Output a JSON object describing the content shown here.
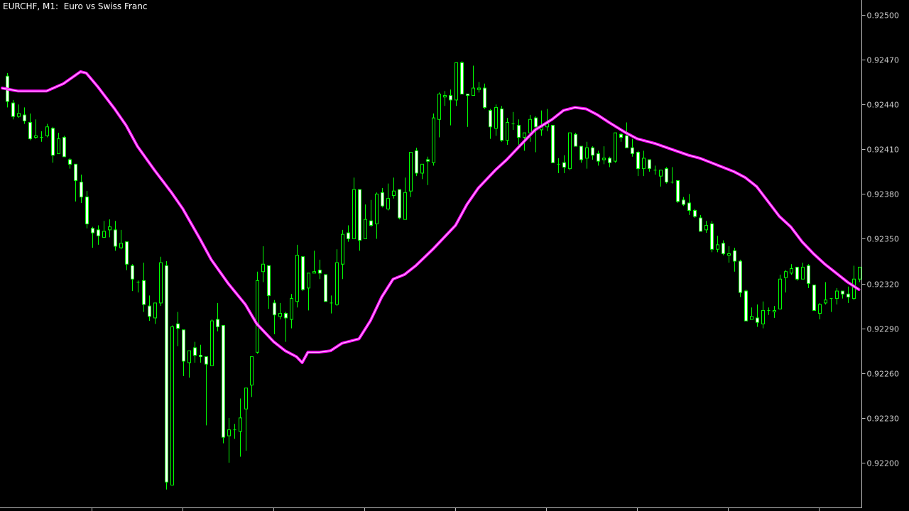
{
  "chart_title": "EURCHF, M1:  Euro vs Swiss Franc",
  "colors": {
    "background": "#000000",
    "candle_wick": "#00ff00",
    "bull_body_outline": "#00ff00",
    "bull_body_fill": "#000000",
    "bear_body_fill": "#ffffff",
    "moving_average": "#ff00ff",
    "axis": "#c0c0c0",
    "axis_text": "#d0d0d0"
  },
  "chart_data": {
    "type": "candlestick",
    "symbol": "EURCHF",
    "timeframe": "M1",
    "title": "EURCHF, M1:  Euro vs Swiss Franc",
    "xlabel": "",
    "ylabel": "",
    "ylim": [
      0.9217,
      0.9251
    ],
    "grid": false,
    "y_ticks": [
      "0.92500",
      "0.92470",
      "0.92440",
      "0.92410",
      "0.92380",
      "0.92350",
      "0.92320",
      "0.92290",
      "0.92260",
      "0.92230",
      "0.92200"
    ],
    "candle_fields": [
      "open",
      "high",
      "low",
      "close"
    ],
    "candles": [
      [
        0.92459,
        0.92461,
        0.92438,
        0.92442
      ],
      [
        0.92441,
        0.92443,
        0.9243,
        0.92432
      ],
      [
        0.92432,
        0.9244,
        0.92431,
        0.92434
      ],
      [
        0.92433,
        0.92438,
        0.92427,
        0.92429
      ],
      [
        0.92428,
        0.92434,
        0.92416,
        0.92417
      ],
      [
        0.92418,
        0.9243,
        0.92417,
        0.92419
      ],
      [
        0.92418,
        0.92422,
        0.92415,
        0.92418
      ],
      [
        0.92419,
        0.92427,
        0.92418,
        0.92425
      ],
      [
        0.92424,
        0.92425,
        0.92401,
        0.92406
      ],
      [
        0.92407,
        0.92421,
        0.92407,
        0.92417
      ],
      [
        0.92418,
        0.92419,
        0.92405,
        0.92405
      ],
      [
        0.92403,
        0.92404,
        0.92397,
        0.924
      ],
      [
        0.924,
        0.924,
        0.92375,
        0.92389
      ],
      [
        0.92388,
        0.92393,
        0.92374,
        0.92378
      ],
      [
        0.92378,
        0.92382,
        0.92357,
        0.9236
      ],
      [
        0.92357,
        0.92358,
        0.92344,
        0.92354
      ],
      [
        0.92356,
        0.92359,
        0.92346,
        0.92352
      ],
      [
        0.92351,
        0.92362,
        0.92351,
        0.92355
      ],
      [
        0.92356,
        0.92363,
        0.92351,
        0.92358
      ],
      [
        0.92356,
        0.92362,
        0.92342,
        0.92345
      ],
      [
        0.92344,
        0.92356,
        0.92343,
        0.92347
      ],
      [
        0.92348,
        0.92348,
        0.92329,
        0.92333
      ],
      [
        0.92332,
        0.92333,
        0.92315,
        0.92323
      ],
      [
        0.92321,
        0.92322,
        0.92314,
        0.92321
      ],
      [
        0.92322,
        0.92334,
        0.92301,
        0.92306
      ],
      [
        0.92305,
        0.92312,
        0.92295,
        0.92298
      ],
      [
        0.92297,
        0.92307,
        0.92293,
        0.92307
      ],
      [
        0.92307,
        0.92338,
        0.92305,
        0.92334
      ],
      [
        0.92332,
        0.92335,
        0.92182,
        0.92187
      ],
      [
        0.92185,
        0.92292,
        0.92185,
        0.92291
      ],
      [
        0.92293,
        0.92301,
        0.92278,
        0.9229
      ],
      [
        0.92289,
        0.92289,
        0.92258,
        0.92268
      ],
      [
        0.92267,
        0.92275,
        0.92257,
        0.92275
      ],
      [
        0.92277,
        0.92281,
        0.92267,
        0.92272
      ],
      [
        0.92272,
        0.92279,
        0.92267,
        0.92271
      ],
      [
        0.92271,
        0.92271,
        0.92225,
        0.92266
      ],
      [
        0.92265,
        0.92296,
        0.92265,
        0.92295
      ],
      [
        0.92296,
        0.92307,
        0.92288,
        0.92291
      ],
      [
        0.92292,
        0.92292,
        0.92213,
        0.92217
      ],
      [
        0.92218,
        0.9223,
        0.922,
        0.92222
      ],
      [
        0.92222,
        0.92226,
        0.92216,
        0.92222
      ],
      [
        0.92221,
        0.92243,
        0.92204,
        0.9223
      ],
      [
        0.92236,
        0.9225,
        0.92208,
        0.9225
      ],
      [
        0.92252,
        0.92271,
        0.92244,
        0.92271
      ],
      [
        0.92274,
        0.92328,
        0.92273,
        0.92322
      ],
      [
        0.92328,
        0.92345,
        0.92321,
        0.92333
      ],
      [
        0.92332,
        0.92332,
        0.92303,
        0.92312
      ],
      [
        0.92307,
        0.92309,
        0.92286,
        0.92299
      ],
      [
        0.92298,
        0.92307,
        0.92296,
        0.923
      ],
      [
        0.923,
        0.92301,
        0.92281,
        0.92297
      ],
      [
        0.92296,
        0.92313,
        0.9229,
        0.9231
      ],
      [
        0.92308,
        0.92346,
        0.92304,
        0.92339
      ],
      [
        0.92338,
        0.92338,
        0.92315,
        0.92316
      ],
      [
        0.92317,
        0.92327,
        0.92302,
        0.92327
      ],
      [
        0.92327,
        0.92342,
        0.92327,
        0.92328
      ],
      [
        0.92329,
        0.92336,
        0.92323,
        0.92327
      ],
      [
        0.92326,
        0.92326,
        0.92308,
        0.92308
      ],
      [
        0.92307,
        0.92312,
        0.923,
        0.92307
      ],
      [
        0.92306,
        0.92343,
        0.92305,
        0.92334
      ],
      [
        0.92333,
        0.92356,
        0.92323,
        0.92353
      ],
      [
        0.92354,
        0.92359,
        0.92348,
        0.9235
      ],
      [
        0.9235,
        0.92391,
        0.9235,
        0.92383
      ],
      [
        0.92383,
        0.92383,
        0.92342,
        0.92349
      ],
      [
        0.9235,
        0.92373,
        0.9235,
        0.92363
      ],
      [
        0.92362,
        0.92376,
        0.92358,
        0.92359
      ],
      [
        0.9236,
        0.92381,
        0.9235,
        0.9238
      ],
      [
        0.92381,
        0.92384,
        0.92371,
        0.92372
      ],
      [
        0.9237,
        0.92387,
        0.92369,
        0.92377
      ],
      [
        0.92379,
        0.92391,
        0.92377,
        0.92382
      ],
      [
        0.92383,
        0.92383,
        0.92363,
        0.92364
      ],
      [
        0.92363,
        0.92391,
        0.92363,
        0.92381
      ],
      [
        0.92382,
        0.92408,
        0.92378,
        0.92408
      ],
      [
        0.92409,
        0.92411,
        0.92392,
        0.92394
      ],
      [
        0.92394,
        0.924,
        0.9239,
        0.924
      ],
      [
        0.92403,
        0.92405,
        0.92386,
        0.92402
      ],
      [
        0.92401,
        0.92434,
        0.92399,
        0.92431
      ],
      [
        0.9243,
        0.92448,
        0.92418,
        0.92447
      ],
      [
        0.92445,
        0.92449,
        0.92439,
        0.92446
      ],
      [
        0.92446,
        0.9245,
        0.92426,
        0.92443
      ],
      [
        0.92443,
        0.92468,
        0.92439,
        0.92468
      ],
      [
        0.92468,
        0.92469,
        0.92447,
        0.92447
      ],
      [
        0.92447,
        0.92447,
        0.92425,
        0.92446
      ],
      [
        0.92446,
        0.92466,
        0.92446,
        0.92451
      ],
      [
        0.9245,
        0.92455,
        0.92448,
        0.92451
      ],
      [
        0.92451,
        0.92454,
        0.92437,
        0.92438
      ],
      [
        0.92436,
        0.92437,
        0.92417,
        0.92425
      ],
      [
        0.92424,
        0.9244,
        0.92419,
        0.92438
      ],
      [
        0.92437,
        0.92439,
        0.92415,
        0.92416
      ],
      [
        0.92416,
        0.92431,
        0.92413,
        0.92428
      ],
      [
        0.92427,
        0.92435,
        0.92423,
        0.92427
      ],
      [
        0.92426,
        0.9243,
        0.92411,
        0.92418
      ],
      [
        0.92418,
        0.92421,
        0.92409,
        0.92421
      ],
      [
        0.92421,
        0.92433,
        0.92415,
        0.9243
      ],
      [
        0.92431,
        0.92432,
        0.92408,
        0.92425
      ],
      [
        0.92423,
        0.92436,
        0.92419,
        0.92425
      ],
      [
        0.92425,
        0.92437,
        0.92422,
        0.92427
      ],
      [
        0.92426,
        0.92426,
        0.92401,
        0.92401
      ],
      [
        0.924,
        0.92404,
        0.92394,
        0.924
      ],
      [
        0.92401,
        0.92406,
        0.92394,
        0.92398
      ],
      [
        0.92397,
        0.92421,
        0.92396,
        0.92421
      ],
      [
        0.9242,
        0.92421,
        0.92412,
        0.92412
      ],
      [
        0.92412,
        0.92412,
        0.92401,
        0.92403
      ],
      [
        0.92404,
        0.92415,
        0.92397,
        0.92411
      ],
      [
        0.92411,
        0.92412,
        0.92403,
        0.92406
      ],
      [
        0.92407,
        0.92409,
        0.92399,
        0.92402
      ],
      [
        0.92403,
        0.92412,
        0.924,
        0.92404
      ],
      [
        0.92404,
        0.92405,
        0.92398,
        0.92401
      ],
      [
        0.92402,
        0.92421,
        0.92401,
        0.92421
      ],
      [
        0.9242,
        0.92421,
        0.92415,
        0.92418
      ],
      [
        0.92419,
        0.92428,
        0.92411,
        0.92411
      ],
      [
        0.92411,
        0.92417,
        0.92405,
        0.92407
      ],
      [
        0.92408,
        0.92409,
        0.92392,
        0.92397
      ],
      [
        0.92397,
        0.92409,
        0.92392,
        0.92404
      ],
      [
        0.92403,
        0.92403,
        0.92395,
        0.92397
      ],
      [
        0.92396,
        0.92399,
        0.92393,
        0.92396
      ],
      [
        0.92392,
        0.92396,
        0.92385,
        0.92396
      ],
      [
        0.92397,
        0.92398,
        0.92387,
        0.92388
      ],
      [
        0.92388,
        0.92398,
        0.92387,
        0.92388
      ],
      [
        0.92389,
        0.92389,
        0.92374,
        0.92375
      ],
      [
        0.92376,
        0.92378,
        0.92372,
        0.92373
      ],
      [
        0.92374,
        0.9238,
        0.92366,
        0.92369
      ],
      [
        0.92369,
        0.9237,
        0.92364,
        0.92365
      ],
      [
        0.92364,
        0.92366,
        0.92355,
        0.92355
      ],
      [
        0.92356,
        0.92362,
        0.92354,
        0.92359
      ],
      [
        0.9236,
        0.92362,
        0.92341,
        0.92343
      ],
      [
        0.92343,
        0.92352,
        0.92341,
        0.92346
      ],
      [
        0.92347,
        0.92349,
        0.92339,
        0.9234
      ],
      [
        0.92339,
        0.92345,
        0.92334,
        0.9234
      ],
      [
        0.92342,
        0.92344,
        0.92328,
        0.92335
      ],
      [
        0.92335,
        0.92336,
        0.92311,
        0.92314
      ],
      [
        0.92315,
        0.92316,
        0.92295,
        0.92295
      ],
      [
        0.92296,
        0.92304,
        0.92296,
        0.92298
      ],
      [
        0.92297,
        0.92306,
        0.92291,
        0.92294
      ],
      [
        0.92293,
        0.92308,
        0.9229,
        0.92302
      ],
      [
        0.92302,
        0.92304,
        0.92299,
        0.92302
      ],
      [
        0.92301,
        0.92305,
        0.92297,
        0.92302
      ],
      [
        0.92303,
        0.92326,
        0.92303,
        0.92323
      ],
      [
        0.92324,
        0.92329,
        0.92314,
        0.92328
      ],
      [
        0.92327,
        0.92333,
        0.92326,
        0.9233
      ],
      [
        0.92331,
        0.92331,
        0.92322,
        0.92323
      ],
      [
        0.92323,
        0.92334,
        0.92323,
        0.92331
      ],
      [
        0.92332,
        0.92333,
        0.92317,
        0.9232
      ],
      [
        0.92319,
        0.92319,
        0.92302,
        0.92302
      ],
      [
        0.923,
        0.92307,
        0.92296,
        0.92306
      ],
      [
        0.92307,
        0.92321,
        0.92306,
        0.92309
      ],
      [
        0.9231,
        0.9231,
        0.92301,
        0.9231
      ],
      [
        0.9231,
        0.92317,
        0.92306,
        0.92315
      ],
      [
        0.92315,
        0.92315,
        0.9231,
        0.92313
      ],
      [
        0.92313,
        0.92318,
        0.92307,
        0.92311
      ],
      [
        0.9231,
        0.92332,
        0.92309,
        0.92323
      ],
      [
        0.92323,
        0.92331,
        0.92321,
        0.92331
      ]
    ],
    "moving_average": {
      "point_fields": [
        "bar_index",
        "price"
      ],
      "points": [
        [
          0,
          0.92451
        ],
        [
          2,
          0.92449
        ],
        [
          4,
          0.92449
        ],
        [
          7,
          0.92449
        ],
        [
          10,
          0.92454
        ],
        [
          13,
          0.92462
        ],
        [
          14,
          0.92461
        ],
        [
          16,
          0.92452
        ],
        [
          19,
          0.92437
        ],
        [
          21,
          0.92426
        ],
        [
          23,
          0.92412
        ],
        [
          26,
          0.92396
        ],
        [
          29,
          0.92381
        ],
        [
          31,
          0.9237
        ],
        [
          34,
          0.9235
        ],
        [
          36,
          0.92336
        ],
        [
          39,
          0.9232
        ],
        [
          42,
          0.92306
        ],
        [
          44,
          0.92293
        ],
        [
          47,
          0.92281
        ],
        [
          49,
          0.92275
        ],
        [
          51,
          0.92271
        ],
        [
          52,
          0.92267
        ],
        [
          53,
          0.92274
        ],
        [
          55,
          0.92274
        ],
        [
          57,
          0.92275
        ],
        [
          59,
          0.9228
        ],
        [
          62,
          0.92283
        ],
        [
          64,
          0.92295
        ],
        [
          66,
          0.92311
        ],
        [
          68,
          0.92323
        ],
        [
          70,
          0.92326
        ],
        [
          72,
          0.92332
        ],
        [
          75,
          0.92343
        ],
        [
          79,
          0.92359
        ],
        [
          81,
          0.92373
        ],
        [
          83,
          0.92384
        ],
        [
          86,
          0.92396
        ],
        [
          88,
          0.92403
        ],
        [
          91,
          0.92415
        ],
        [
          93,
          0.92423
        ],
        [
          96,
          0.9243
        ],
        [
          98,
          0.92436
        ],
        [
          100,
          0.92438
        ],
        [
          102,
          0.92437
        ],
        [
          104,
          0.92433
        ],
        [
          106,
          0.92428
        ],
        [
          109,
          0.92421
        ],
        [
          111,
          0.92417
        ],
        [
          114,
          0.92414
        ],
        [
          117,
          0.9241
        ],
        [
          120,
          0.92406
        ],
        [
          122,
          0.92404
        ],
        [
          124,
          0.92401
        ],
        [
          126,
          0.92398
        ],
        [
          128,
          0.92395
        ],
        [
          130,
          0.92391
        ],
        [
          132,
          0.92385
        ],
        [
          134,
          0.92375
        ],
        [
          136,
          0.92365
        ],
        [
          138,
          0.92358
        ],
        [
          140,
          0.92348
        ],
        [
          142,
          0.9234
        ],
        [
          144,
          0.92333
        ],
        [
          146,
          0.92327
        ],
        [
          148,
          0.92321
        ],
        [
          150,
          0.92316
        ]
      ]
    }
  }
}
